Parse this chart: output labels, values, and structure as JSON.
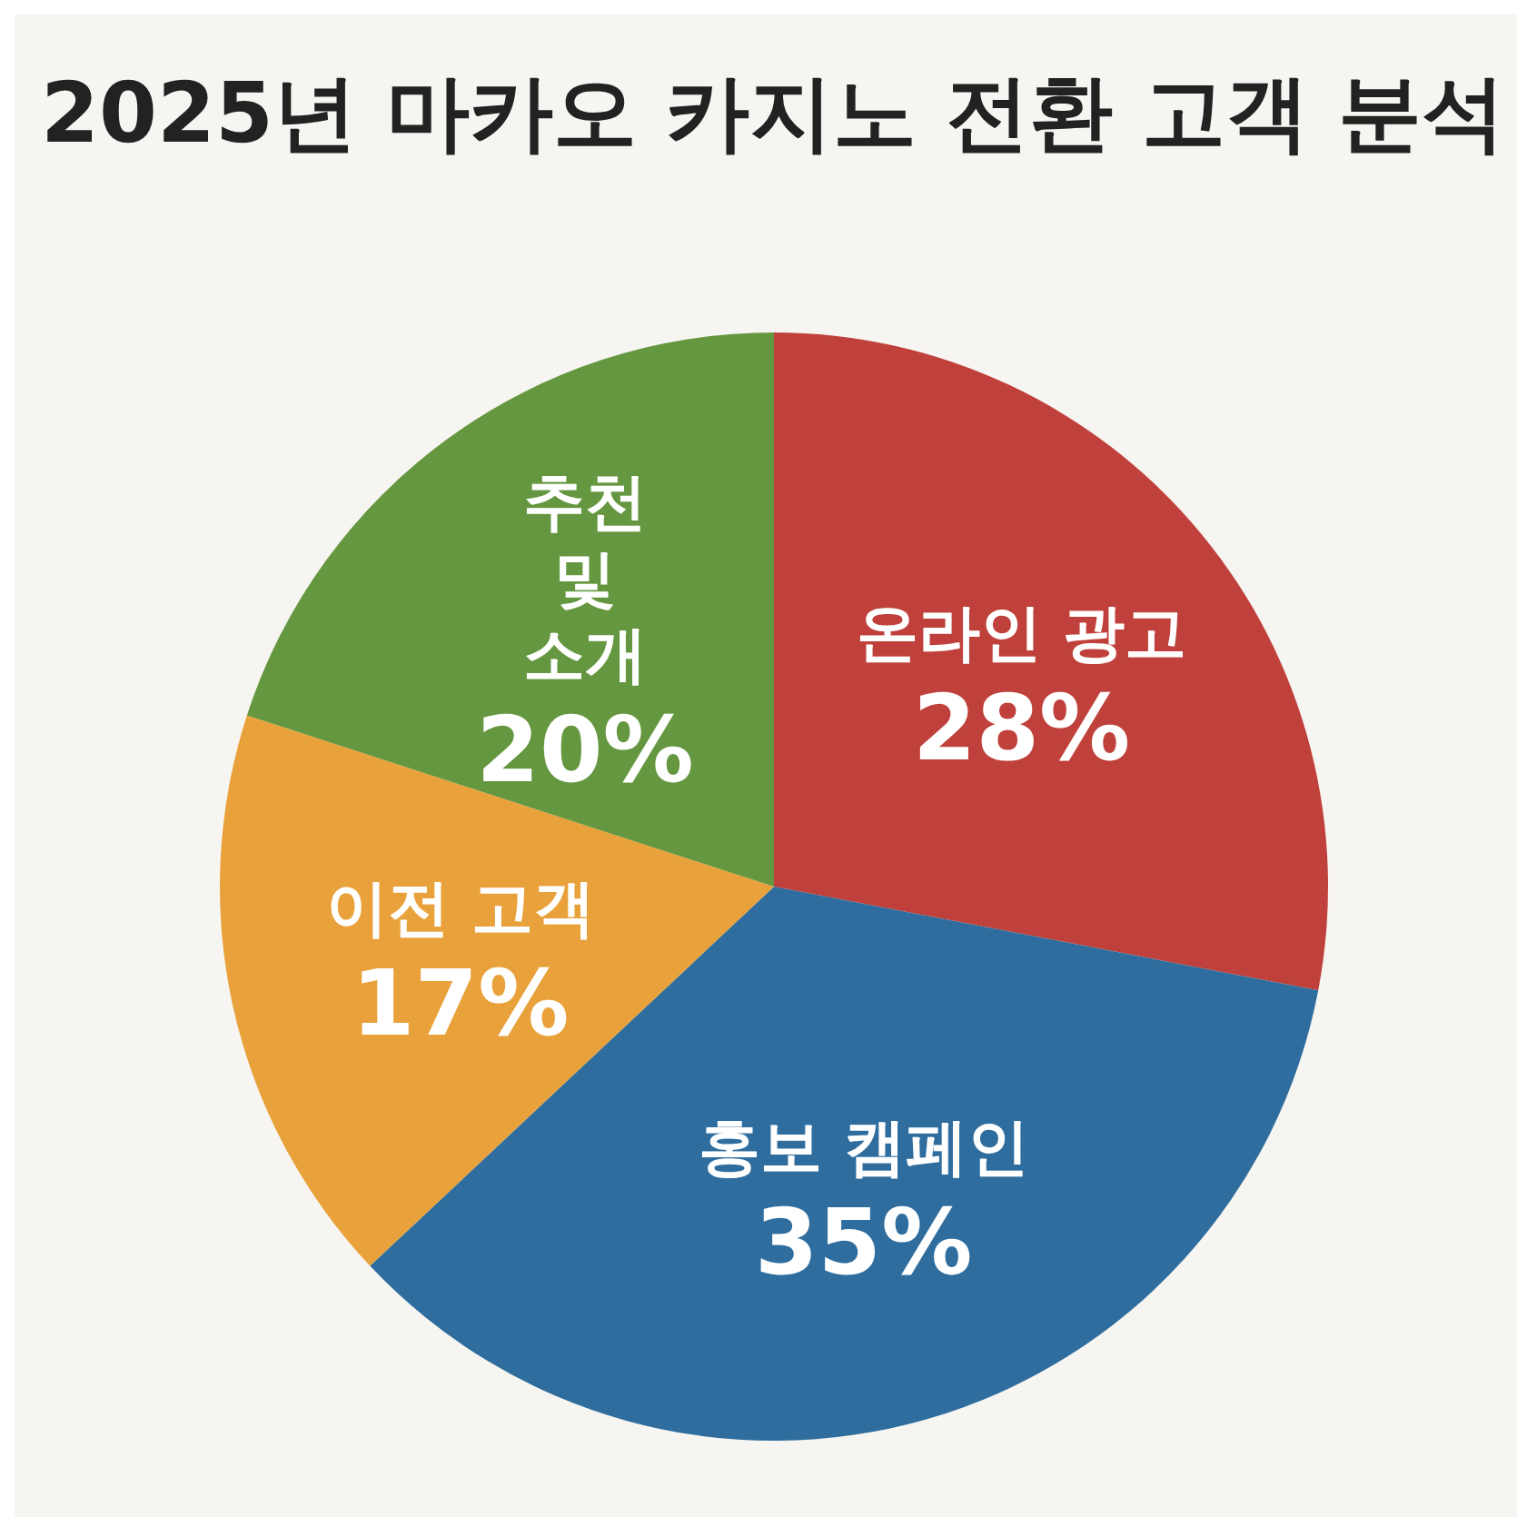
{
  "chart_data": {
    "type": "pie",
    "title": "2025년 마카오 카지노 전환 고객 분석",
    "categories": [
      "온라인 광고",
      "홍보 캠페인",
      "이전 고객",
      "추천 및 소개"
    ],
    "values": [
      28,
      35,
      17,
      20
    ],
    "colors": [
      "#c0413b",
      "#2e6d9e",
      "#e9a23b",
      "#64973f"
    ],
    "value_labels": [
      "28%",
      "35%",
      "17%",
      "20%"
    ],
    "legend": false
  }
}
